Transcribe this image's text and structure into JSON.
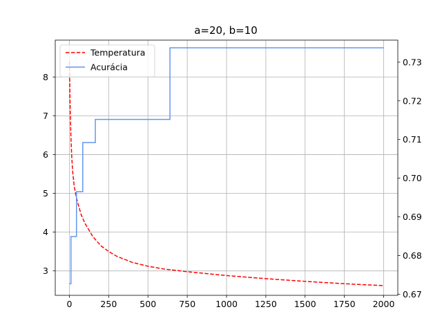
{
  "chart_data": {
    "type": "line",
    "title": "a=20, b=10",
    "xlabel": "",
    "ylabel": "",
    "y2label": "",
    "grid": true,
    "legend_placement": "top-left",
    "xlim": [
      -90,
      2090
    ],
    "ylim": [
      2.37,
      8.95
    ],
    "y2lim": [
      0.6697,
      0.7357
    ],
    "x_ticks": [
      0,
      250,
      500,
      750,
      1000,
      1250,
      1500,
      1750,
      2000
    ],
    "x_tick_labels": [
      "0",
      "250",
      "500",
      "750",
      "1000",
      "1250",
      "1500",
      "1750",
      "2000"
    ],
    "y_ticks": [
      3,
      4,
      5,
      6,
      7,
      8
    ],
    "y_tick_labels": [
      "3",
      "4",
      "5",
      "6",
      "7",
      "8"
    ],
    "y2_ticks": [
      0.67,
      0.68,
      0.69,
      0.7,
      0.71,
      0.72,
      0.73
    ],
    "y2_tick_labels": [
      "0.67",
      "0.68",
      "0.69",
      "0.70",
      "0.71",
      "0.72",
      "0.73"
    ],
    "series": [
      {
        "name": "Temperatura",
        "axis": "left",
        "style": "dashed",
        "color": "#ff0000",
        "x": [
          0,
          2,
          5,
          10,
          15,
          20,
          30,
          40,
          50,
          75,
          100,
          150,
          200,
          250,
          300,
          400,
          500,
          600,
          750,
          1000,
          1250,
          1500,
          1750,
          2000
        ],
        "y": [
          8.4,
          7.9,
          7.2,
          6.4,
          5.95,
          5.6,
          5.2,
          4.98,
          4.8,
          4.45,
          4.22,
          3.88,
          3.65,
          3.5,
          3.38,
          3.22,
          3.12,
          3.05,
          2.98,
          2.88,
          2.8,
          2.73,
          2.67,
          2.62
        ]
      },
      {
        "name": "Acurácia",
        "axis": "right",
        "style": "steps-post",
        "color": "#6495ed",
        "x": [
          0,
          10,
          45,
          85,
          165,
          640,
          2000
        ],
        "y": [
          0.6727,
          0.6849,
          0.6965,
          0.7092,
          0.7152,
          0.7337,
          0.7337
        ]
      }
    ]
  }
}
